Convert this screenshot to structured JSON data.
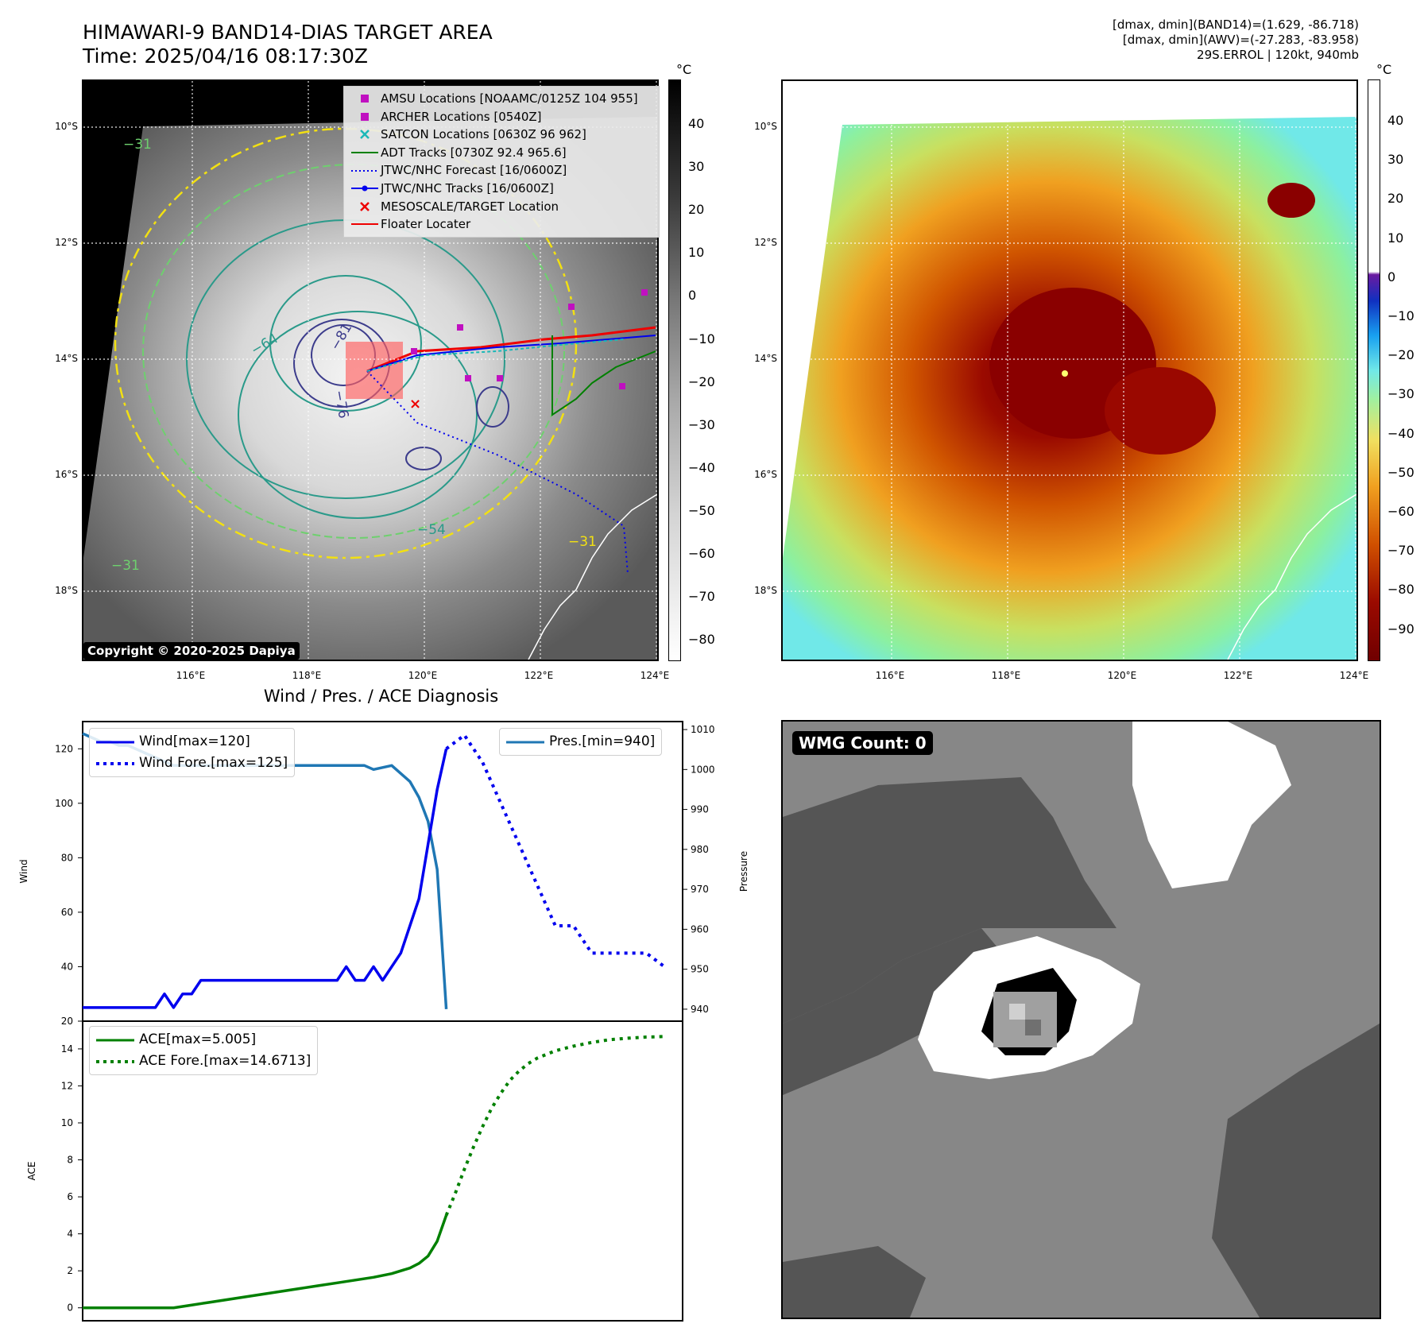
{
  "header": {
    "title_line1": "HIMAWARI-9 BAND14-DIAS TARGET AREA",
    "title_line2": "Time: 2025/04/16 08:17:30Z",
    "info_line1": "[dmax, dmin](BAND14)=(1.629, -86.718)",
    "info_line2": "[dmax, dmin](AWV)=(-27.283, -83.958)",
    "info_line3": "29S.ERROL | 120kt, 940mb"
  },
  "map_left": {
    "copyright": "Copyright © 2020-2025 Dapiya",
    "lat_labels": [
      "10°S",
      "12°S",
      "14°S",
      "16°S",
      "18°S"
    ],
    "lon_labels": [
      "116°E",
      "118°E",
      "120°E",
      "122°E",
      "124°E"
    ],
    "colorbar_unit": "°C",
    "colorbar_ticks": [
      "40",
      "30",
      "20",
      "10",
      "0",
      "−10",
      "−20",
      "−30",
      "−40",
      "−50",
      "−60",
      "−70",
      "−80"
    ],
    "contour_labels": [
      "−64",
      "−81",
      "−76",
      "−54",
      "−31",
      "−31",
      "−31"
    ],
    "legend": [
      {
        "label": "AMSU Locations [NOAAMC/0125Z 104 955]",
        "symbol": "square",
        "color": "#c010c0"
      },
      {
        "label": "ARCHER Locations [0540Z]",
        "symbol": "square",
        "color": "#c010c0"
      },
      {
        "label": "SATCON Locations [0630Z 96 962]",
        "symbol": "cross",
        "color": "#1ab8b8"
      },
      {
        "label": "ADT Tracks [0730Z 92.4 965.6]",
        "symbol": "line",
        "color": "#008000"
      },
      {
        "label": "JTWC/NHC Forecast [16/0600Z]",
        "symbol": "dotted",
        "color": "#0000ee"
      },
      {
        "label": "JTWC/NHC Tracks [16/0600Z]",
        "symbol": "line-dot",
        "color": "#0000ee"
      },
      {
        "label": "MESOSCALE/TARGET Location",
        "symbol": "x",
        "color": "#ee0000"
      },
      {
        "label": "Floater Locater",
        "symbol": "line",
        "color": "#ee0000"
      }
    ]
  },
  "map_right": {
    "lat_labels": [
      "10°S",
      "12°S",
      "14°S",
      "16°S",
      "18°S"
    ],
    "lon_labels": [
      "116°E",
      "118°E",
      "120°E",
      "122°E",
      "124°E"
    ],
    "colorbar_unit": "°C",
    "colorbar_ticks": [
      "40",
      "30",
      "20",
      "10",
      "0",
      "−10",
      "−20",
      "−30",
      "−40",
      "−50",
      "−60",
      "−70",
      "−80",
      "−90"
    ]
  },
  "wind_panel_title": "Wind / Pres. / ACE Diagnosis",
  "wmg_label": "WMG Count: 0",
  "chart_data": [
    {
      "type": "line",
      "ylabel": "Wind",
      "y2label": "Pressure",
      "ylim": [
        20,
        130
      ],
      "y2lim": [
        937,
        1012
      ],
      "yticks": [
        20,
        40,
        60,
        80,
        100,
        120
      ],
      "y2ticks": [
        940,
        950,
        960,
        970,
        980,
        990,
        1000,
        1010
      ],
      "xlim": [
        0,
        66
      ],
      "series": [
        {
          "name": "Wind[max=120]",
          "axis": "left",
          "style": "solid",
          "color": "#0000ee",
          "x": [
            0,
            2,
            4,
            6,
            8,
            9,
            10,
            11,
            12,
            13,
            14,
            16,
            18,
            20,
            22,
            24,
            26,
            28,
            29,
            30,
            31,
            32,
            33,
            34,
            35,
            36,
            37,
            38,
            39,
            40
          ],
          "y": [
            25,
            25,
            25,
            25,
            25,
            30,
            25,
            30,
            30,
            35,
            35,
            35,
            35,
            35,
            35,
            35,
            35,
            35,
            40,
            35,
            35,
            40,
            35,
            40,
            45,
            55,
            65,
            85,
            105,
            120
          ]
        },
        {
          "name": "Wind Fore.[max=125]",
          "axis": "left",
          "style": "dotted",
          "color": "#0000ee",
          "x": [
            40,
            42,
            44,
            46,
            48,
            50,
            52,
            54,
            56,
            58,
            60,
            62,
            64
          ],
          "y": [
            120,
            125,
            115,
            100,
            85,
            70,
            55,
            55,
            45,
            45,
            45,
            45,
            40
          ]
        },
        {
          "name": "Pres.[min=940]",
          "axis": "right",
          "style": "solid",
          "color": "#1f77b4",
          "x": [
            0,
            1,
            2,
            3,
            4,
            5,
            6,
            7,
            8,
            9,
            10,
            11,
            12,
            14,
            16,
            18,
            20,
            22,
            24,
            26,
            28,
            30,
            31,
            32,
            34,
            36,
            37,
            38,
            39,
            40
          ],
          "y": [
            1009,
            1008,
            1007,
            1007,
            1006,
            1006,
            1005,
            1004,
            1003,
            1002,
            1001,
            1001,
            1001,
            1001,
            1001,
            1001,
            1001,
            1001,
            1001,
            1001,
            1001,
            1001,
            1001,
            1000,
            1001,
            997,
            993,
            987,
            975,
            940
          ]
        }
      ]
    },
    {
      "type": "line",
      "ylabel": "ACE",
      "ylim": [
        -0.7,
        15.5
      ],
      "yticks": [
        0,
        2,
        4,
        6,
        8,
        10,
        12,
        14
      ],
      "xlim": [
        0,
        66
      ],
      "series": [
        {
          "name": "ACE[max=5.005]",
          "style": "solid",
          "color": "#008000",
          "x": [
            0,
            10,
            12,
            14,
            16,
            18,
            20,
            22,
            24,
            26,
            28,
            30,
            32,
            34,
            36,
            37,
            38,
            39,
            40
          ],
          "y": [
            0,
            0,
            0.15,
            0.3,
            0.45,
            0.6,
            0.75,
            0.9,
            1.05,
            1.2,
            1.35,
            1.5,
            1.65,
            1.85,
            2.15,
            2.4,
            2.8,
            3.6,
            5.0
          ]
        },
        {
          "name": "ACE Fore.[max=14.6713]",
          "style": "dotted",
          "color": "#008000",
          "x": [
            40,
            41,
            42,
            43,
            44,
            45,
            46,
            47,
            48,
            49,
            50,
            52,
            54,
            56,
            58,
            60,
            62,
            64
          ],
          "y": [
            5.0,
            6.2,
            7.5,
            8.7,
            9.8,
            10.8,
            11.6,
            12.3,
            12.8,
            13.2,
            13.5,
            13.9,
            14.15,
            14.35,
            14.5,
            14.58,
            14.64,
            14.67
          ]
        }
      ]
    }
  ]
}
